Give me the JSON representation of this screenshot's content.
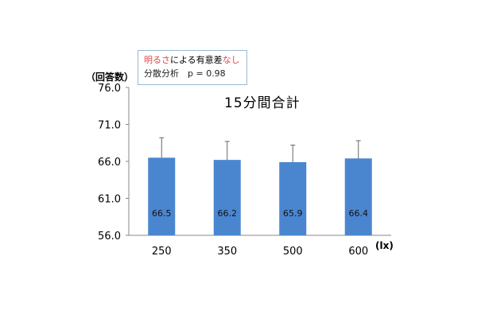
{
  "note": {
    "line1_red": "明るさ",
    "line1_rest": "による有意差",
    "line1_red2": "なし",
    "line2": "分散分析　p = 0.98"
  },
  "chart_data": {
    "type": "bar",
    "title": "15分間合計",
    "ylabel": "（回答数）",
    "xunit": "(lx)",
    "categories": [
      "250",
      "350",
      "500",
      "600"
    ],
    "values": [
      66.5,
      66.2,
      65.9,
      66.4
    ],
    "value_labels": [
      "66.5",
      "66.2",
      "65.9",
      "66.4"
    ],
    "error_upper": [
      69.2,
      68.7,
      68.2,
      68.8
    ],
    "ylim": [
      56.0,
      76.0
    ],
    "yticks": [
      "56.0",
      "61.0",
      "66.0",
      "71.0",
      "76.0"
    ],
    "grid": false,
    "bar_color": "#4a86d0"
  }
}
